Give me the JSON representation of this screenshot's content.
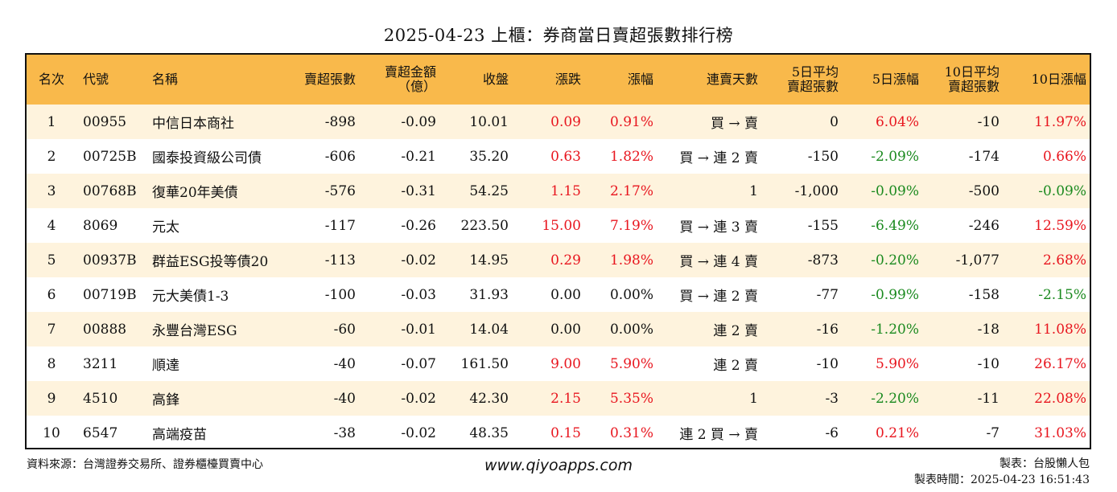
{
  "title": "2025-04-23 上櫃：券商當日賣超張數排行榜",
  "columns": [
    {
      "label": "名次",
      "align": "c"
    },
    {
      "label": "代號",
      "align": "l"
    },
    {
      "label": "名稱",
      "align": "l"
    },
    {
      "label": "賣超張數",
      "align": "r"
    },
    {
      "label": "賣超金額\n（億）",
      "align": "r"
    },
    {
      "label": "收盤",
      "align": "r"
    },
    {
      "label": "漲跌",
      "align": "r"
    },
    {
      "label": "漲幅",
      "align": "r"
    },
    {
      "label": "連賣天數",
      "align": "r"
    },
    {
      "label": "5日平均\n賣超張數",
      "align": "r"
    },
    {
      "label": "5日漲幅",
      "align": "r"
    },
    {
      "label": "10日平均\n賣超張數",
      "align": "r"
    },
    {
      "label": "10日漲幅",
      "align": "r"
    }
  ],
  "rows": [
    {
      "rank": "1",
      "code": "00955",
      "name": "中信日本商社",
      "sell_vol": "-898",
      "sell_amt": "-0.09",
      "close": "10.01",
      "change": "0.09",
      "change_pct": "0.91%",
      "days": "買 → 賣",
      "avg5": "0",
      "pct5": "6.04%",
      "avg10": "-10",
      "pct10": "11.97%"
    },
    {
      "rank": "2",
      "code": "00725B",
      "name": "國泰投資級公司債",
      "sell_vol": "-606",
      "sell_amt": "-0.21",
      "close": "35.20",
      "change": "0.63",
      "change_pct": "1.82%",
      "days": "買 → 連 2 賣",
      "avg5": "-150",
      "pct5": "-2.09%",
      "avg10": "-174",
      "pct10": "0.66%"
    },
    {
      "rank": "3",
      "code": "00768B",
      "name": "復華20年美債",
      "sell_vol": "-576",
      "sell_amt": "-0.31",
      "close": "54.25",
      "change": "1.15",
      "change_pct": "2.17%",
      "days": "1",
      "avg5": "-1,000",
      "pct5": "-0.09%",
      "avg10": "-500",
      "pct10": "-0.09%"
    },
    {
      "rank": "4",
      "code": "8069",
      "name": "元太",
      "sell_vol": "-117",
      "sell_amt": "-0.26",
      "close": "223.50",
      "change": "15.00",
      "change_pct": "7.19%",
      "days": "買 → 連 3 賣",
      "avg5": "-155",
      "pct5": "-6.49%",
      "avg10": "-246",
      "pct10": "12.59%"
    },
    {
      "rank": "5",
      "code": "00937B",
      "name": "群益ESG投等債20",
      "sell_vol": "-113",
      "sell_amt": "-0.02",
      "close": "14.95",
      "change": "0.29",
      "change_pct": "1.98%",
      "days": "買 → 連 4 賣",
      "avg5": "-873",
      "pct5": "-0.20%",
      "avg10": "-1,077",
      "pct10": "2.68%"
    },
    {
      "rank": "6",
      "code": "00719B",
      "name": "元大美債1-3",
      "sell_vol": "-100",
      "sell_amt": "-0.03",
      "close": "31.93",
      "change": "0.00",
      "change_pct": "0.00%",
      "days": "買 → 連 2 賣",
      "avg5": "-77",
      "pct5": "-0.99%",
      "avg10": "-158",
      "pct10": "-2.15%"
    },
    {
      "rank": "7",
      "code": "00888",
      "name": "永豐台灣ESG",
      "sell_vol": "-60",
      "sell_amt": "-0.01",
      "close": "14.04",
      "change": "0.00",
      "change_pct": "0.00%",
      "days": "連 2 賣",
      "avg5": "-16",
      "pct5": "-1.20%",
      "avg10": "-18",
      "pct10": "11.08%"
    },
    {
      "rank": "8",
      "code": "3211",
      "name": "順達",
      "sell_vol": "-40",
      "sell_amt": "-0.07",
      "close": "161.50",
      "change": "9.00",
      "change_pct": "5.90%",
      "days": "連 2 賣",
      "avg5": "-10",
      "pct5": "5.90%",
      "avg10": "-10",
      "pct10": "26.17%"
    },
    {
      "rank": "9",
      "code": "4510",
      "name": "高鋒",
      "sell_vol": "-40",
      "sell_amt": "-0.02",
      "close": "42.30",
      "change": "2.15",
      "change_pct": "5.35%",
      "days": "1",
      "avg5": "-3",
      "pct5": "-2.20%",
      "avg10": "-11",
      "pct10": "22.08%"
    },
    {
      "rank": "10",
      "code": "6547",
      "name": "高端疫苗",
      "sell_vol": "-38",
      "sell_amt": "-0.02",
      "close": "48.35",
      "change": "0.15",
      "change_pct": "0.31%",
      "days": "連 2 買 → 賣",
      "avg5": "-6",
      "pct5": "0.21%",
      "avg10": "-7",
      "pct10": "31.03%"
    }
  ],
  "footer": {
    "source": "資料來源：台灣證券交易所、證券櫃檯買賣中心",
    "website": "www.qiyoapps.com",
    "maker": "製表：台股懶人包",
    "made_time": "製表時間：2025-04-23 16:51:43"
  },
  "colors": {
    "header_bg": "#f9b94b",
    "odd_row_bg": "#fef3dd",
    "positive": "#e8161f",
    "negative": "#1b8a1f"
  }
}
